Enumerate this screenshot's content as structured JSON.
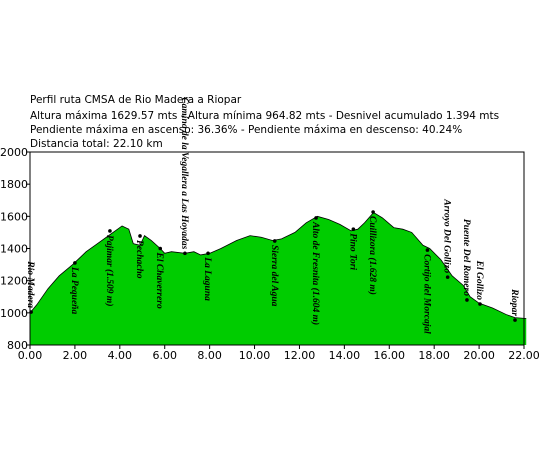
{
  "chart_data": {
    "type": "area",
    "title": "Perfil ruta CMSA de Rio Madera a Riopar",
    "subtitle": [
      "Altura máxima 1629.57 mts - Altura mínima 964.82 mts - Desnivel acumulado 1.394 mts",
      "Pendiente máxima en ascenso: 36.36% - Pendiente máxima en descenso: 40.24%",
      "Distancia total: 22.10 km"
    ],
    "color": "#00cc00",
    "x": [
      0,
      0.3,
      0.8,
      1.3,
      1.9,
      2.5,
      3.0,
      3.5,
      3.8,
      4.1,
      4.4,
      4.6,
      4.9,
      5.1,
      5.4,
      5.8,
      6.0,
      6.3,
      6.9,
      7.3,
      7.6,
      8.0,
      8.5,
      9.2,
      9.8,
      10.3,
      10.8,
      11.2,
      11.8,
      12.3,
      12.8,
      13.3,
      13.8,
      14.3,
      14.6,
      14.9,
      15.3,
      15.7,
      16.2,
      16.6,
      17.0,
      17.5,
      17.8,
      18.3,
      18.8,
      19.3,
      19.6,
      20.0,
      20.6,
      21.2,
      21.6,
      22.1
    ],
    "values": [
      1000,
      1050,
      1150,
      1230,
      1300,
      1380,
      1430,
      1480,
      1510,
      1540,
      1520,
      1430,
      1420,
      1480,
      1450,
      1400,
      1370,
      1380,
      1370,
      1380,
      1360,
      1370,
      1400,
      1450,
      1480,
      1470,
      1450,
      1460,
      1500,
      1560,
      1600,
      1580,
      1550,
      1510,
      1520,
      1560,
      1624,
      1590,
      1530,
      1520,
      1500,
      1420,
      1400,
      1330,
      1230,
      1170,
      1100,
      1060,
      1030,
      990,
      970,
      965
    ],
    "waypoints": [
      {
        "name": "Rio Madera",
        "x": 0.05,
        "y": 1005
      },
      {
        "name": "La Pequeña",
        "x": 2.0,
        "y": 1310
      },
      {
        "name": "Pajimar (1.509 m)",
        "x": 3.56,
        "y": 1509
      },
      {
        "name": "Pechacho",
        "x": 4.9,
        "y": 1478
      },
      {
        "name": "El Chaverrero",
        "x": 5.8,
        "y": 1400
      },
      {
        "name": "Camino de la Vegallera a Las Hoyadas",
        "x": 6.9,
        "y": 1370
      },
      {
        "name": "La Laguna",
        "x": 7.93,
        "y": 1370
      },
      {
        "name": "Sierra del Agua",
        "x": 10.9,
        "y": 1447
      },
      {
        "name": "Alto de Fresnita (1.604 m)",
        "x": 12.74,
        "y": 1590
      },
      {
        "name": "Pino Tori",
        "x": 14.4,
        "y": 1520
      },
      {
        "name": "Cuillizora (1.628 m)",
        "x": 15.28,
        "y": 1627
      },
      {
        "name": "Cortijo del Morcajal",
        "x": 17.7,
        "y": 1390
      },
      {
        "name": "Arroyo Del Gollizo",
        "x": 18.6,
        "y": 1222
      },
      {
        "name": "Puente Del Romero",
        "x": 19.46,
        "y": 1080
      },
      {
        "name": "El Gollizo",
        "x": 20.04,
        "y": 1055
      },
      {
        "name": "Riopar",
        "x": 21.6,
        "y": 955
      }
    ],
    "xlim": [
      0,
      22
    ],
    "ylim": [
      800,
      2000
    ],
    "xticks": [
      {
        "value": 0,
        "label": "0.00"
      },
      {
        "value": 2,
        "label": "2.00"
      },
      {
        "value": 4,
        "label": "4.00"
      },
      {
        "value": 6,
        "label": "6.00"
      },
      {
        "value": 8,
        "label": "8.00"
      },
      {
        "value": 10,
        "label": "10.00"
      },
      {
        "value": 12,
        "label": "12.00"
      },
      {
        "value": 14,
        "label": "14.00"
      },
      {
        "value": 16,
        "label": "16.00"
      },
      {
        "value": 18,
        "label": "18.00"
      },
      {
        "value": 20,
        "label": "20.00"
      },
      {
        "value": 22,
        "label": "22.00"
      }
    ],
    "yticks": [
      800,
      1000,
      1200,
      1400,
      1600,
      1800,
      2000
    ]
  }
}
